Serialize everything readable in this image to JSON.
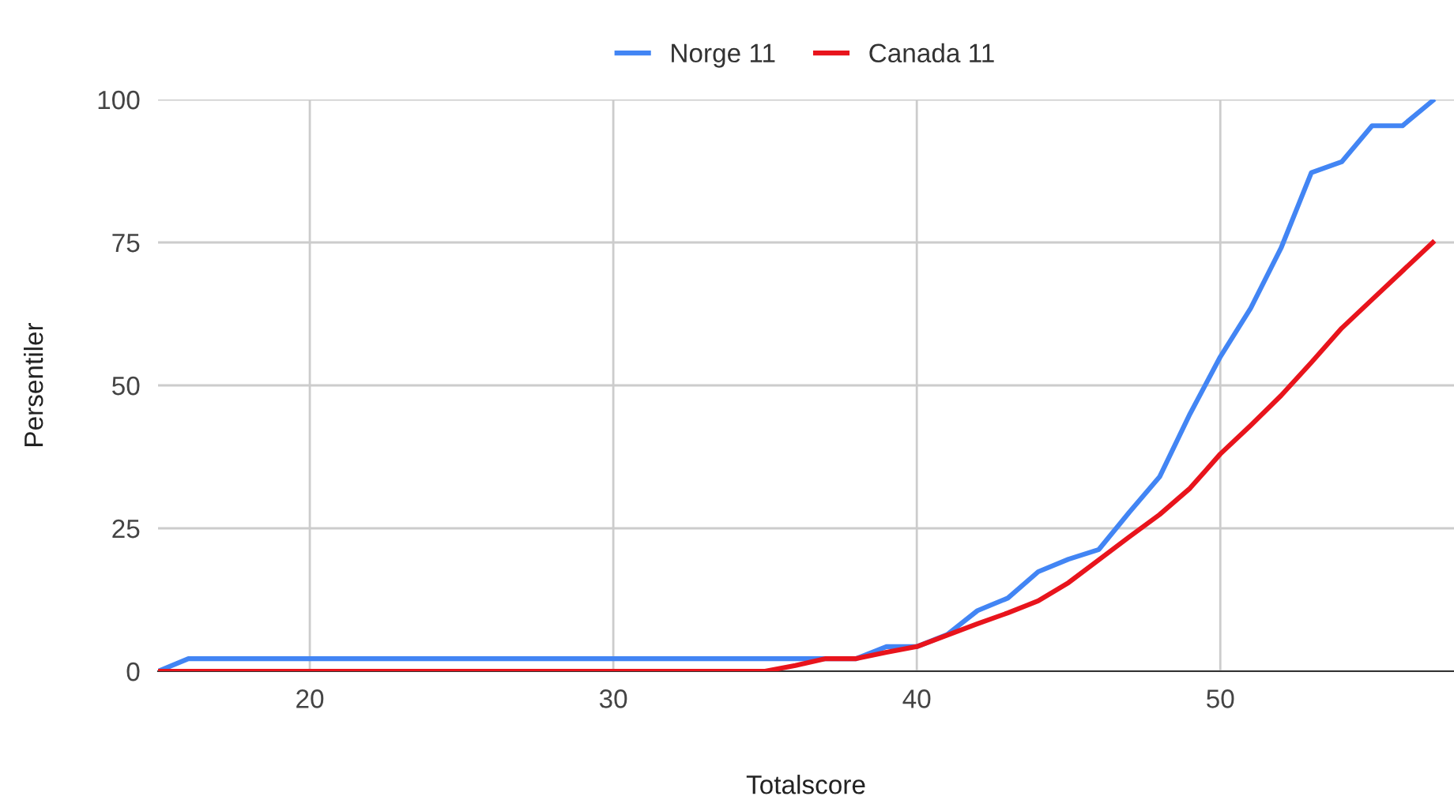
{
  "chart_data": {
    "type": "line",
    "xlabel": "Totalscore",
    "ylabel": "Persentiler",
    "x": [
      15,
      16,
      17,
      18,
      19,
      20,
      21,
      22,
      23,
      24,
      25,
      26,
      27,
      28,
      29,
      30,
      31,
      32,
      33,
      34,
      35,
      36,
      37,
      38,
      39,
      40,
      41,
      42,
      43,
      44,
      45,
      46,
      47,
      48,
      49,
      50,
      51,
      52,
      53,
      54,
      55,
      56,
      57
    ],
    "series": [
      {
        "name": "Norge 11",
        "color": "#4285f4",
        "values": [
          0,
          2.2,
          2.2,
          2.2,
          2.2,
          2.2,
          2.2,
          2.2,
          2.2,
          2.2,
          2.2,
          2.2,
          2.2,
          2.2,
          2.2,
          2.2,
          2.2,
          2.2,
          2.2,
          2.2,
          2.2,
          2.2,
          2.2,
          2.2,
          4.3,
          4.3,
          6.4,
          10.6,
          12.8,
          17.4,
          19.6,
          21.3,
          27.8,
          34,
          45,
          55,
          63.5,
          74,
          87.2,
          89.1,
          95.4,
          95.4,
          99.8
        ]
      },
      {
        "name": "Canada 11",
        "color": "#e8141c",
        "values": [
          0,
          0,
          0,
          0,
          0,
          0,
          0,
          0,
          0,
          0,
          0,
          0,
          0,
          0,
          0,
          0,
          0,
          0,
          0,
          0,
          0,
          1,
          2.2,
          2.2,
          3.3,
          4.3,
          6.3,
          8.3,
          10.2,
          12.3,
          15.5,
          19.5,
          23.5,
          27.4,
          32,
          38,
          43,
          48.2,
          54,
          60,
          65,
          70,
          75
        ]
      }
    ],
    "xlim": [
      15,
      57.7
    ],
    "xticks": [
      20,
      30,
      40,
      50
    ],
    "ylim": [
      0,
      100
    ],
    "yticks": [
      0,
      25,
      50,
      75,
      100
    ],
    "grid": true,
    "legend": "top",
    "marker": "none",
    "line_style": "solid"
  }
}
